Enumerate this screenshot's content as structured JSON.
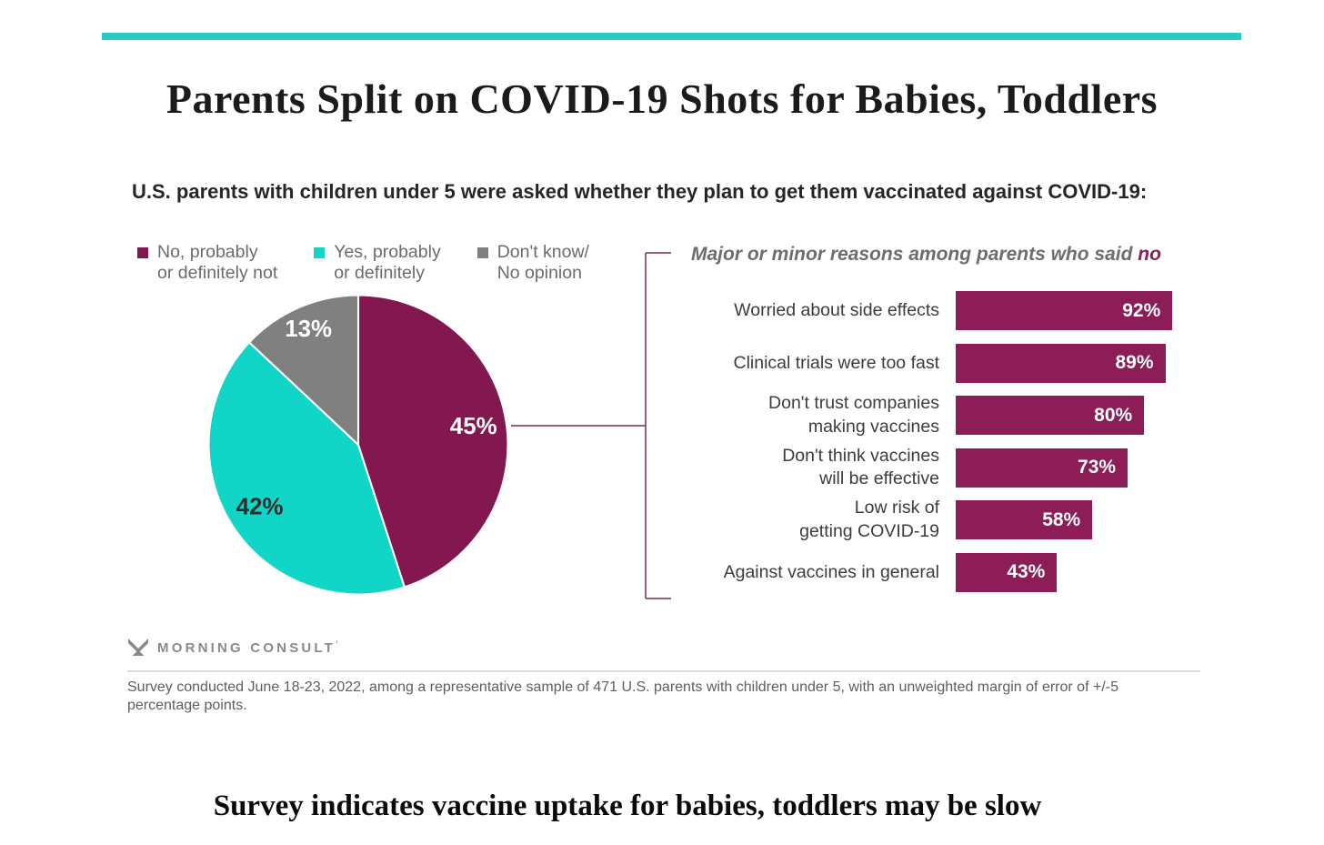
{
  "page": {
    "title": "Parents Split on COVID-19 Shots for Babies, Toddlers",
    "subtitle": "U.S. parents with children under 5 were asked whether they plan to get them vaccinated against COVID-19:",
    "footnote": "Survey conducted June 18-23, 2022, among a representative sample of 471 U.S. parents with children under 5, with an unweighted margin of error of +/-5\npercentage points.",
    "caption": "Survey indicates vaccine uptake for babies, toddlers may be slow",
    "accent_teal": "#2bc8c4",
    "logo": {
      "text": "MORNING CONSULT",
      "mark": "’"
    }
  },
  "legend": {
    "items": [
      {
        "label": "No, probably\nor definitely not",
        "color": "#83174f"
      },
      {
        "label": "Yes, probably\nor definitely",
        "color": "#11d5c6"
      },
      {
        "label": "Don't know/\nNo opinion",
        "color": "#808080"
      }
    ]
  },
  "reasons_title": {
    "prefix": "Major or minor reasons among parents who said ",
    "highlight": "no"
  },
  "chart_data": [
    {
      "type": "pie",
      "title": "U.S. parents' plans to vaccinate children under 5 against COVID-19",
      "categories": [
        "No, probably or definitely not",
        "Yes, probably or definitely",
        "Don't know/No opinion"
      ],
      "values": [
        45,
        42,
        13
      ],
      "colors": [
        "#83174f",
        "#11d5c6",
        "#808080"
      ],
      "label_colors": [
        "#ffffff",
        "#2d2d2d",
        "#ffffff"
      ],
      "start_angle_deg": 0,
      "direction": "clockwise",
      "unit": "%"
    },
    {
      "type": "bar",
      "orientation": "horizontal",
      "title": "Major or minor reasons among parents who said no",
      "categories": [
        "Worried about side effects",
        "Clinical trials were too fast",
        "Don't trust companies\nmaking vaccines",
        "Don't think vaccines\nwill be effective",
        "Low risk of\ngetting COVID-19",
        "Against vaccines in general"
      ],
      "values": [
        92,
        89,
        80,
        73,
        58,
        43
      ],
      "bar_color": "#8c1d56",
      "value_color": "#ffffff",
      "xlim": [
        0,
        100
      ],
      "unit": "%"
    }
  ]
}
